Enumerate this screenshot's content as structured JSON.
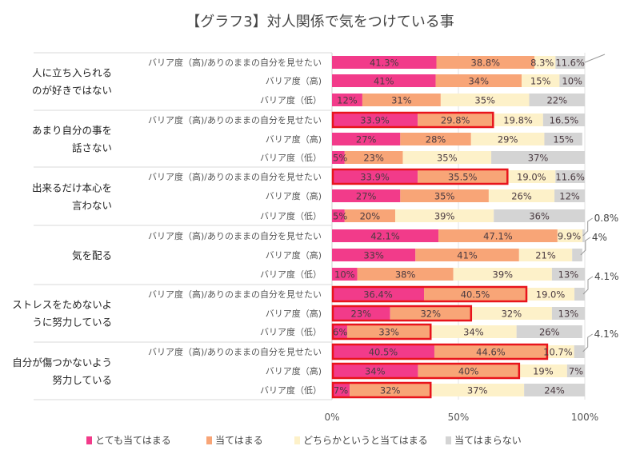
{
  "chart_data": {
    "type": "bar",
    "orientation": "horizontal-stacked-100",
    "title": "【グラフ3】対人関係で気をつけている事",
    "xlim": [
      0,
      100
    ],
    "x_ticks": [
      "0%",
      "50%",
      "100%"
    ],
    "grid": true,
    "legend_position": "bottom",
    "series_names": [
      "とても当てはまる",
      "当てはまる",
      "どちらかというと当てはまる",
      "当てはまらない"
    ],
    "series_colors": [
      "#f23b8a",
      "#f8a577",
      "#fdf1c9",
      "#d4d4d4"
    ],
    "highlight_color": "#e8141c",
    "groups": [
      {
        "label_lines": [
          "人に立ち入られる",
          "のが好きではない"
        ],
        "rows": [
          {
            "label": "バリア度（高)/ありのままの自分を見せたい",
            "values": [
              41.3,
              38.8,
              8.3,
              11.6
            ],
            "labels": [
              "41.3%",
              "38.8%",
              "8.3%",
              "11.6%"
            ],
            "highlight": false
          },
          {
            "label": "バリア度（高)",
            "values": [
              41,
              34,
              15,
              10
            ],
            "labels": [
              "41%",
              "34%",
              "15%",
              "10%"
            ],
            "highlight": false
          },
          {
            "label": "バリア度（低）",
            "values": [
              12,
              31,
              35,
              22
            ],
            "labels": [
              "12%",
              "31%",
              "35%",
              "22%"
            ],
            "highlight": false
          }
        ]
      },
      {
        "label_lines": [
          "あまり自分の事を",
          "話さない"
        ],
        "rows": [
          {
            "label": "バリア度（高)/ありのままの自分を見せたい",
            "values": [
              33.9,
              29.8,
              19.8,
              16.5
            ],
            "labels": [
              "33.9%",
              "29.8%",
              "19.8%",
              "16.5%"
            ],
            "highlight": true
          },
          {
            "label": "バリア度（高)",
            "values": [
              27,
              28,
              29,
              15
            ],
            "labels": [
              "27%",
              "28%",
              "29%",
              "15%"
            ],
            "highlight": false
          },
          {
            "label": "バリア度（低）",
            "values": [
              5,
              23,
              35,
              37
            ],
            "labels": [
              "5%",
              "23%",
              "35%",
              "37%"
            ],
            "highlight": false
          }
        ]
      },
      {
        "label_lines": [
          "出来るだけ本心を",
          "言わない"
        ],
        "rows": [
          {
            "label": "バリア度（高)/ありのままの自分を見せたい",
            "values": [
              33.9,
              35.5,
              19.0,
              11.6
            ],
            "labels": [
              "33.9%",
              "35.5%",
              "19.0%",
              "11.6%"
            ],
            "highlight": true
          },
          {
            "label": "バリア度（高)",
            "values": [
              27,
              35,
              26,
              12
            ],
            "labels": [
              "27%",
              "35%",
              "26%",
              "12%"
            ],
            "highlight": false
          },
          {
            "label": "バリア度（低）",
            "values": [
              5,
              20,
              39,
              36
            ],
            "labels": [
              "5%",
              "20%",
              "39%",
              "36%"
            ],
            "highlight": false
          }
        ]
      },
      {
        "label_lines": [
          "気を配る"
        ],
        "rows": [
          {
            "label": "バリア度（高)/ありのままの自分を見せたい",
            "values": [
              42.1,
              47.1,
              9.9,
              0.8
            ],
            "labels": [
              "42.1%",
              "47.1%",
              "9.9%",
              "0.8%"
            ],
            "highlight": false
          },
          {
            "label": "バリア度（高)",
            "values": [
              33,
              41,
              21,
              4
            ],
            "labels": [
              "33%",
              "41%",
              "21%",
              "4%"
            ],
            "highlight": false
          },
          {
            "label": "バリア度（低）",
            "values": [
              10,
              38,
              39,
              13
            ],
            "labels": [
              "10%",
              "38%",
              "39%",
              "13%"
            ],
            "highlight": false
          }
        ]
      },
      {
        "label_lines": [
          "ストレスをためないよ",
          "うに努力している"
        ],
        "rows": [
          {
            "label": "バリア度（高)/ありのままの自分を見せたい",
            "values": [
              36.4,
              40.5,
              19.0,
              4.1
            ],
            "labels": [
              "36.4%",
              "40.5%",
              "19.0%",
              "4.1%"
            ],
            "highlight": true
          },
          {
            "label": "バリア度（高)",
            "values": [
              23,
              32,
              32,
              13
            ],
            "labels": [
              "23%",
              "32%",
              "32%",
              "13%"
            ],
            "highlight": true
          },
          {
            "label": "バリア度（低）",
            "values": [
              6,
              33,
              34,
              26
            ],
            "labels": [
              "6%",
              "33%",
              "34%",
              "26%"
            ],
            "highlight": true
          }
        ]
      },
      {
        "label_lines": [
          "自分が傷つかないよう",
          "努力している"
        ],
        "rows": [
          {
            "label": "バリア度（高)/ありのままの自分を見せたい",
            "values": [
              40.5,
              44.6,
              10.7,
              4.1
            ],
            "labels": [
              "40.5%",
              "44.6%",
              "10.7%",
              "4.1%"
            ],
            "highlight": true
          },
          {
            "label": "バリア度（高)",
            "values": [
              34,
              40,
              19,
              7
            ],
            "labels": [
              "34%",
              "40%",
              "19%",
              "7%"
            ],
            "highlight": true
          },
          {
            "label": "バリア度（低）",
            "values": [
              7,
              32,
              37,
              24
            ],
            "labels": [
              "7%",
              "32%",
              "37%",
              "24%"
            ],
            "highlight": true
          }
        ]
      }
    ]
  }
}
